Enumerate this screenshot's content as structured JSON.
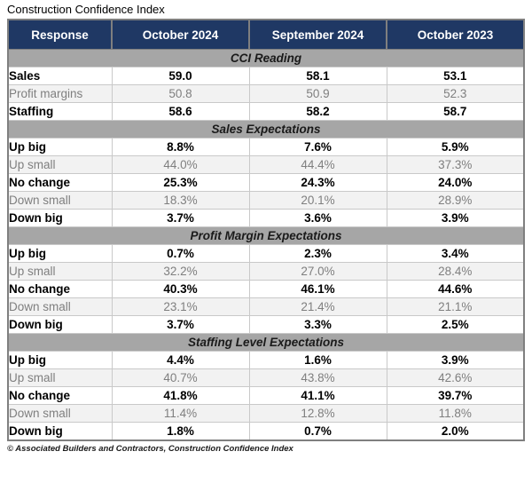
{
  "title": "Construction Confidence Index",
  "footer": "© Associated Builders and Contractors, Construction Confidence Index",
  "colors": {
    "header_bg": "#1F3864",
    "header_text": "#FFFFFF",
    "band_bg": "#A6A6A6",
    "band_text": "#1A1A1A",
    "muted_row_bg": "#F2F2F2",
    "muted_row_text": "#7F7F7F",
    "strong_row_text": "#000000",
    "outer_border": "#7F7F7F",
    "grid_border": "#C9C9C9"
  },
  "chart_data": {
    "type": "table",
    "title": "Construction Confidence Index",
    "columns": [
      "Response",
      "October 2024",
      "September 2024",
      "October 2023"
    ],
    "sections": [
      {
        "name": "CCI Reading",
        "rows": [
          {
            "label": "Sales",
            "values": [
              "59.0",
              "58.1",
              "53.1"
            ],
            "emphasis": true
          },
          {
            "label": "Profit margins",
            "values": [
              "50.8",
              "50.9",
              "52.3"
            ],
            "emphasis": false
          },
          {
            "label": "Staffing",
            "values": [
              "58.6",
              "58.2",
              "58.7"
            ],
            "emphasis": true
          }
        ]
      },
      {
        "name": "Sales Expectations",
        "rows": [
          {
            "label": "Up big",
            "values": [
              "8.8%",
              "7.6%",
              "5.9%"
            ],
            "emphasis": true
          },
          {
            "label": "Up small",
            "values": [
              "44.0%",
              "44.4%",
              "37.3%"
            ],
            "emphasis": false
          },
          {
            "label": "No change",
            "values": [
              "25.3%",
              "24.3%",
              "24.0%"
            ],
            "emphasis": true
          },
          {
            "label": "Down small",
            "values": [
              "18.3%",
              "20.1%",
              "28.9%"
            ],
            "emphasis": false
          },
          {
            "label": "Down big",
            "values": [
              "3.7%",
              "3.6%",
              "3.9%"
            ],
            "emphasis": true
          }
        ]
      },
      {
        "name": "Profit Margin Expectations",
        "rows": [
          {
            "label": "Up big",
            "values": [
              "0.7%",
              "2.3%",
              "3.4%"
            ],
            "emphasis": true
          },
          {
            "label": "Up small",
            "values": [
              "32.2%",
              "27.0%",
              "28.4%"
            ],
            "emphasis": false
          },
          {
            "label": "No change",
            "values": [
              "40.3%",
              "46.1%",
              "44.6%"
            ],
            "emphasis": true
          },
          {
            "label": "Down small",
            "values": [
              "23.1%",
              "21.4%",
              "21.1%"
            ],
            "emphasis": false
          },
          {
            "label": "Down big",
            "values": [
              "3.7%",
              "3.3%",
              "2.5%"
            ],
            "emphasis": true
          }
        ]
      },
      {
        "name": "Staffing Level Expectations",
        "rows": [
          {
            "label": "Up big",
            "values": [
              "4.4%",
              "1.6%",
              "3.9%"
            ],
            "emphasis": true
          },
          {
            "label": "Up small",
            "values": [
              "40.7%",
              "43.8%",
              "42.6%"
            ],
            "emphasis": false
          },
          {
            "label": "No change",
            "values": [
              "41.8%",
              "41.1%",
              "39.7%"
            ],
            "emphasis": true
          },
          {
            "label": "Down small",
            "values": [
              "11.4%",
              "12.8%",
              "11.8%"
            ],
            "emphasis": false
          },
          {
            "label": "Down big",
            "values": [
              "1.8%",
              "0.7%",
              "2.0%"
            ],
            "emphasis": true
          }
        ]
      }
    ]
  }
}
